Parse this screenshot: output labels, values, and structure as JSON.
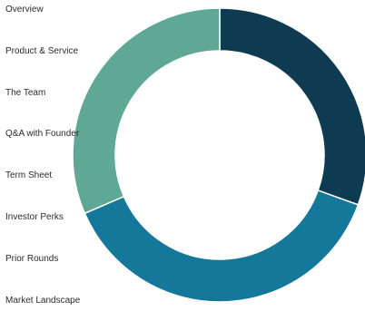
{
  "nav": {
    "items": [
      {
        "label": "Overview"
      },
      {
        "label": "Product & Service"
      },
      {
        "label": "The Team"
      },
      {
        "label": "Q&A with Founder"
      },
      {
        "label": "Term Sheet"
      },
      {
        "label": "Investor Perks"
      },
      {
        "label": "Prior Rounds"
      },
      {
        "label": "Market Landscape"
      }
    ]
  },
  "chart_data": {
    "type": "pie",
    "donut": true,
    "title": "",
    "legend": "none",
    "values": [
      30.5,
      38.0,
      31.5
    ],
    "colors": [
      "#0e3a52",
      "#13789a",
      "#5ea895"
    ]
  }
}
